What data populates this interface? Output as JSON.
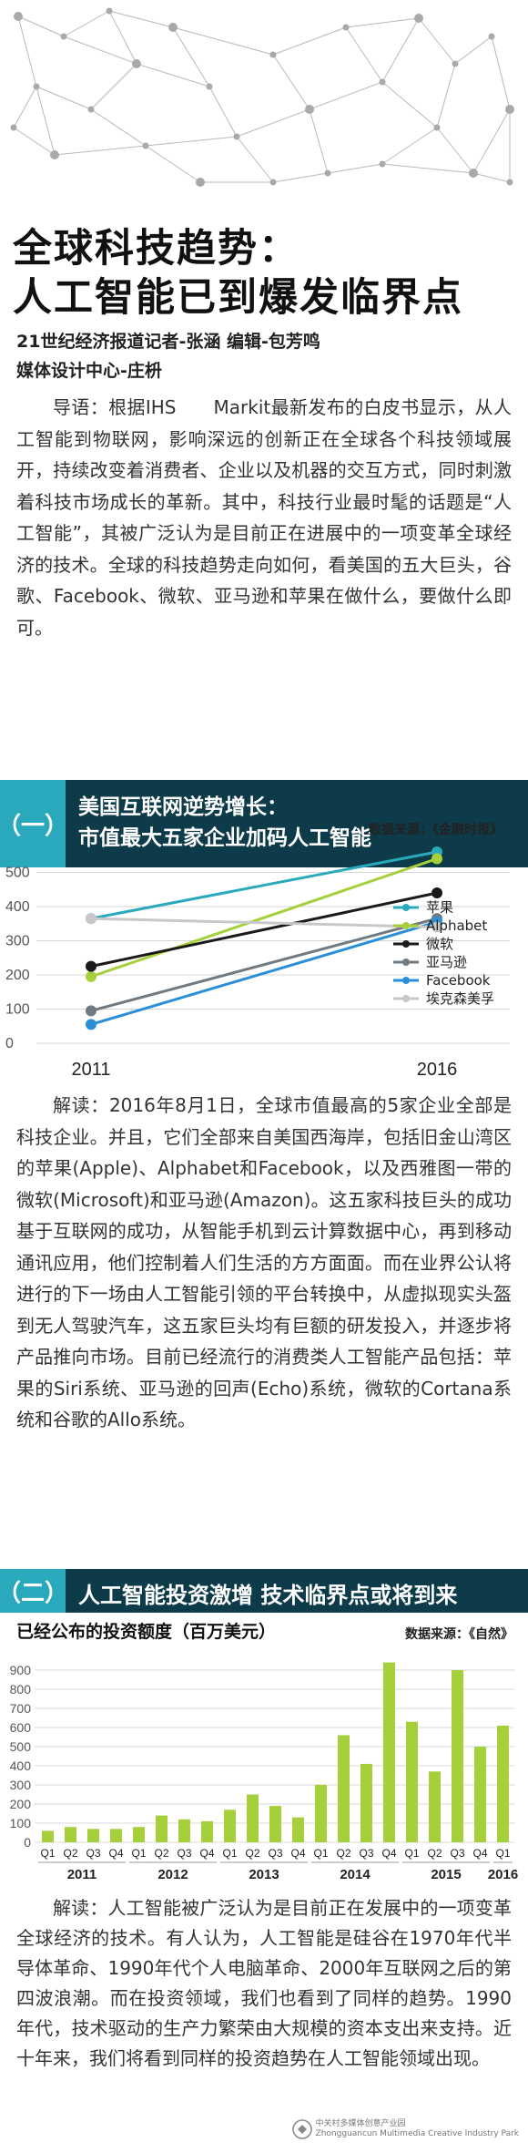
{
  "header": {
    "title_line1": "全球科技趋势：",
    "title_line2": "人工智能已到爆发临界点",
    "byline1": "21世纪经济报道记者-张涵  编辑-包芳鸣",
    "byline2": "媒体设计中心-庄枡"
  },
  "intro": "导语：根据IHS　　Markit最新发布的白皮书显示，从人工智能到物联网，影响深远的创新正在全球各个科技领域展开，持续改变着消费者、企业以及机器的交互方式，同时刺激着科技市场成长的革新。其中，科技行业最时髦的话题是“人工智能”，其被广泛认为是目前正在进展中的一项变革全球经济的技术。全球的科技趋势走向如何，看美国的五大巨头，谷歌、Facebook、微软、亚马逊和苹果在做什么，要做什么即可。",
  "section1": {
    "number": "（一）",
    "title_line1": "美国互联网逆势增长：",
    "title_line2": "市值最大五家企业加码人工智能",
    "source": "数据来源：《金融时报》"
  },
  "reading1": "解读：2016年8月1日，全球市值最高的5家企业全部是科技企业。并且，它们全部来自美国西海岸，包括旧金山湾区的苹果(Apple)、Alphabet和Facebook，以及西雅图一带的微软(Microsoft)和亚马逊(Amazon)。这五家科技巨头的成功基于互联网的成功，从智能手机到云计算数据中心，再到移动通讯应用，他们控制着人们生活的方方面面。而在业界公认将进行的下一场由人工智能引领的平台转换中，从虚拟现实头盔到无人驾驶汽车，这五家巨头均有巨额的研发投入，并逐步将产品推向市场。目前已经流行的消费类人工智能产品包括：苹果的Siri系统、亚马逊的回声(Echo)系统，微软的Cortana系统和谷歌的Allo系统。",
  "section2": {
    "number": "（二）",
    "title": "人工智能投资激增 技术临界点或将到来",
    "source": "数据来源：《自然》",
    "chart_title": "已经公布的投资额度（百万美元）"
  },
  "reading2": "解读：人工智能被广泛认为是目前正在发展中的一项变革全球经济的技术。有人认为，人工智能是硅谷在1970年代半导体革命、1990年代个人电脑革命、2000年互联网之后的第四波浪潮。而在投资领域，我们也看到了同样的趋势。1990年代，技术驱动的生产力繁荣由大规模的资本支出来支持。近十年来，我们将看到同样的投资趋势在人工智能领域出现。",
  "watermark": {
    "line1": "中关村多媒体创意产业园",
    "line2": "Zhongguancun Multimedia Creative Industry Park"
  },
  "colors": {
    "dark_teal": "#0d3b4a",
    "accent_teal": "#2aa9bc",
    "bar_green": "#a6cf3c"
  },
  "chart_data": [
    {
      "type": "line",
      "x": [
        "2011",
        "2016"
      ],
      "yticks": [
        0,
        100,
        200,
        300,
        400,
        500
      ],
      "ylim": [
        0,
        600
      ],
      "grid": true,
      "legend_position": "right",
      "series": [
        {
          "name": "苹果",
          "values": [
            365,
            560
          ],
          "color": "#2aa9bc"
        },
        {
          "name": "Alphabet",
          "values": [
            195,
            540
          ],
          "color": "#a6cf3c"
        },
        {
          "name": "微软",
          "values": [
            225,
            440
          ],
          "color": "#1a1a1a"
        },
        {
          "name": "亚马逊",
          "values": [
            95,
            365
          ],
          "color": "#707a80"
        },
        {
          "name": "Facebook",
          "values": [
            55,
            355
          ],
          "color": "#2a8fd8"
        },
        {
          "name": "埃克森美孚",
          "values": [
            365,
            340
          ],
          "color": "#c8c8c8"
        }
      ]
    },
    {
      "type": "bar",
      "title": "已经公布的投资额度（百万美元）",
      "yticks": [
        0,
        100,
        200,
        300,
        400,
        500,
        600,
        700,
        800,
        900
      ],
      "ylim": [
        0,
        1000
      ],
      "grid": true,
      "quarters": [
        "Q1",
        "Q2",
        "Q3",
        "Q4",
        "Q1",
        "Q2",
        "Q3",
        "Q4",
        "Q1",
        "Q2",
        "Q3",
        "Q4",
        "Q1",
        "Q2",
        "Q3",
        "Q4",
        "Q1",
        "Q2",
        "Q3",
        "Q4",
        "Q1"
      ],
      "years": [
        {
          "label": "2011",
          "span": [
            0,
            3
          ]
        },
        {
          "label": "2012",
          "span": [
            4,
            7
          ]
        },
        {
          "label": "2013",
          "span": [
            8,
            11
          ]
        },
        {
          "label": "2014",
          "span": [
            12,
            15
          ]
        },
        {
          "label": "2015",
          "span": [
            16,
            19
          ]
        },
        {
          "label": "2016",
          "span": [
            20,
            20
          ]
        }
      ],
      "values": [
        60,
        80,
        70,
        70,
        80,
        140,
        120,
        110,
        170,
        250,
        190,
        130,
        300,
        560,
        410,
        940,
        630,
        370,
        900,
        500,
        610
      ]
    }
  ]
}
